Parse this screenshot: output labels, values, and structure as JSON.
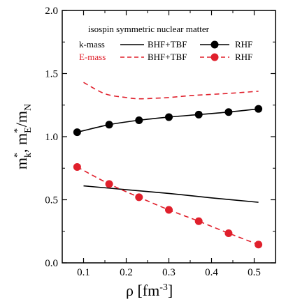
{
  "chart_data": {
    "type": "line",
    "annotation": "isospin symmetric nuclear matter",
    "xlabel": {
      "base": "ρ [fm",
      "sup": "-3",
      "end": "]"
    },
    "ylabel": {
      "m": "m",
      "sup1": "*",
      "sub1": "k",
      "sep": ", m",
      "sup2": "*",
      "sub2": "E",
      "tail": "/m",
      "sub3": "N"
    },
    "xlim": [
      0.05,
      0.55
    ],
    "ylim": [
      0.0,
      2.0
    ],
    "xticks": [
      "0.1",
      "0.2",
      "0.3",
      "0.4",
      "0.5"
    ],
    "yticks": [
      "0.0",
      "0.5",
      "1.0",
      "1.5",
      "2.0"
    ],
    "legend": {
      "row1_label": "k-mass",
      "row2_label": "E-mass",
      "bhf_label": "BHF+TBF",
      "rhf_label": "RHF"
    },
    "series": [
      {
        "name": "k-mass BHF+TBF",
        "color": "#000000",
        "style": "solid",
        "x": [
          0.1,
          0.2,
          0.3,
          0.4,
          0.51
        ],
        "y": [
          0.61,
          0.58,
          0.55,
          0.515,
          0.48
        ]
      },
      {
        "name": "E-mass BHF+TBF",
        "color": "#e0202c",
        "style": "dashed",
        "x": [
          0.1,
          0.15,
          0.2,
          0.23,
          0.27,
          0.3,
          0.35,
          0.4,
          0.45,
          0.51
        ],
        "y": [
          1.43,
          1.34,
          1.31,
          1.3,
          1.305,
          1.31,
          1.325,
          1.335,
          1.345,
          1.36
        ]
      },
      {
        "name": "k-mass RHF",
        "color": "#000000",
        "style": "solid-marker",
        "x": [
          0.085,
          0.16,
          0.23,
          0.3,
          0.37,
          0.44,
          0.51
        ],
        "y": [
          1.035,
          1.095,
          1.13,
          1.155,
          1.175,
          1.195,
          1.22
        ]
      },
      {
        "name": "E-mass RHF",
        "color": "#e0202c",
        "style": "dashed-marker",
        "x": [
          0.085,
          0.16,
          0.23,
          0.3,
          0.37,
          0.44,
          0.51
        ],
        "y": [
          0.76,
          0.625,
          0.52,
          0.42,
          0.33,
          0.235,
          0.145
        ]
      }
    ]
  }
}
